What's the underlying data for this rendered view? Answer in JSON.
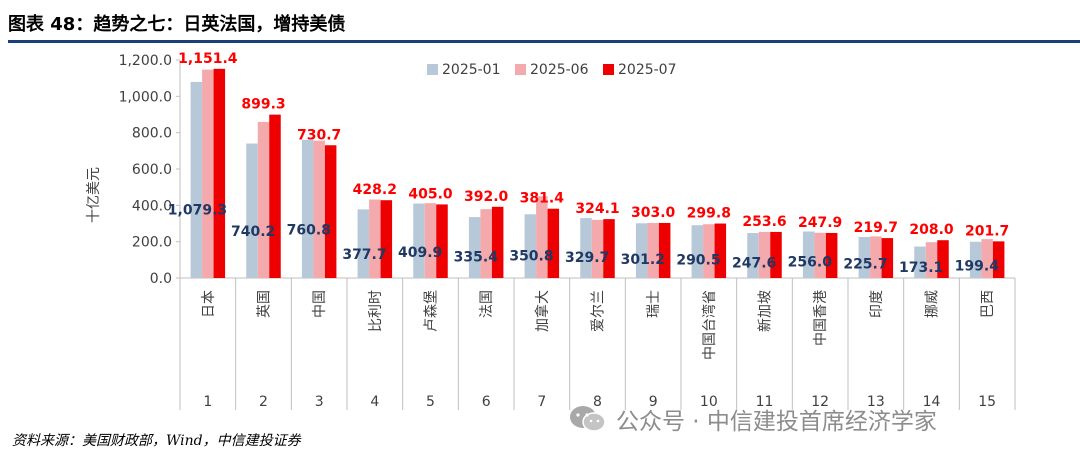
{
  "title": "图表 48：趋势之七：日英法国，增持美债",
  "source": "资料来源：美国财政部，Wind，中信建投证券",
  "watermark": "公众号 · 中信建投首席经济学家",
  "colors": {
    "rule": "#1b3f7a",
    "s1": "#b7c9d8",
    "s2": "#f4a9ad",
    "s3": "#ee0000",
    "label_s1": "#1f3864",
    "label_s3": "#ff0000"
  },
  "chart_data": {
    "type": "bar",
    "ylabel": "十亿美元",
    "ylim": [
      0,
      1200
    ],
    "yticks": [
      "0.0",
      "200.0",
      "400.0",
      "600.0",
      "800.0",
      "1,000.0",
      "1,200.0"
    ],
    "grid": false,
    "legend_position": "top",
    "categories": [
      "日本",
      "英国",
      "中国",
      "比利时",
      "卢森堡",
      "法国",
      "加拿大",
      "爱尔兰",
      "瑞士",
      "中国台湾省",
      "新加坡",
      "中国香港",
      "印度",
      "挪威",
      "巴西"
    ],
    "ranks": [
      "1",
      "2",
      "3",
      "4",
      "5",
      "6",
      "7",
      "8",
      "9",
      "10",
      "11",
      "12",
      "13",
      "14",
      "15"
    ],
    "series": [
      {
        "name": "2025-01",
        "values": [
          1079.3,
          740.2,
          760.8,
          377.7,
          409.9,
          335.4,
          350.8,
          329.7,
          301.2,
          290.5,
          247.6,
          256.0,
          225.7,
          173.1,
          199.4
        ],
        "labels": [
          "1,079.3",
          "740.2",
          "760.8",
          "377.7",
          "409.9",
          "335.4",
          "350.8",
          "329.7",
          "301.2",
          "290.5",
          "247.6",
          "256.0",
          "225.7",
          "173.1",
          "199.4"
        ]
      },
      {
        "name": "2025-06",
        "values": [
          1147,
          859,
          756,
          432,
          412,
          379,
          450,
          320,
          303,
          296,
          254,
          249,
          229,
          197,
          214
        ]
      },
      {
        "name": "2025-07",
        "values": [
          1151.4,
          899.3,
          730.7,
          428.2,
          405.0,
          392.0,
          381.4,
          324.1,
          303.0,
          299.8,
          253.6,
          247.9,
          219.7,
          208.0,
          201.7
        ],
        "labels": [
          "1,151.4",
          "899.3",
          "730.7",
          "428.2",
          "405.0",
          "392.0",
          "381.4",
          "324.1",
          "303.0",
          "299.8",
          "253.6",
          "247.9",
          "219.7",
          "208.0",
          "201.7"
        ]
      }
    ]
  }
}
